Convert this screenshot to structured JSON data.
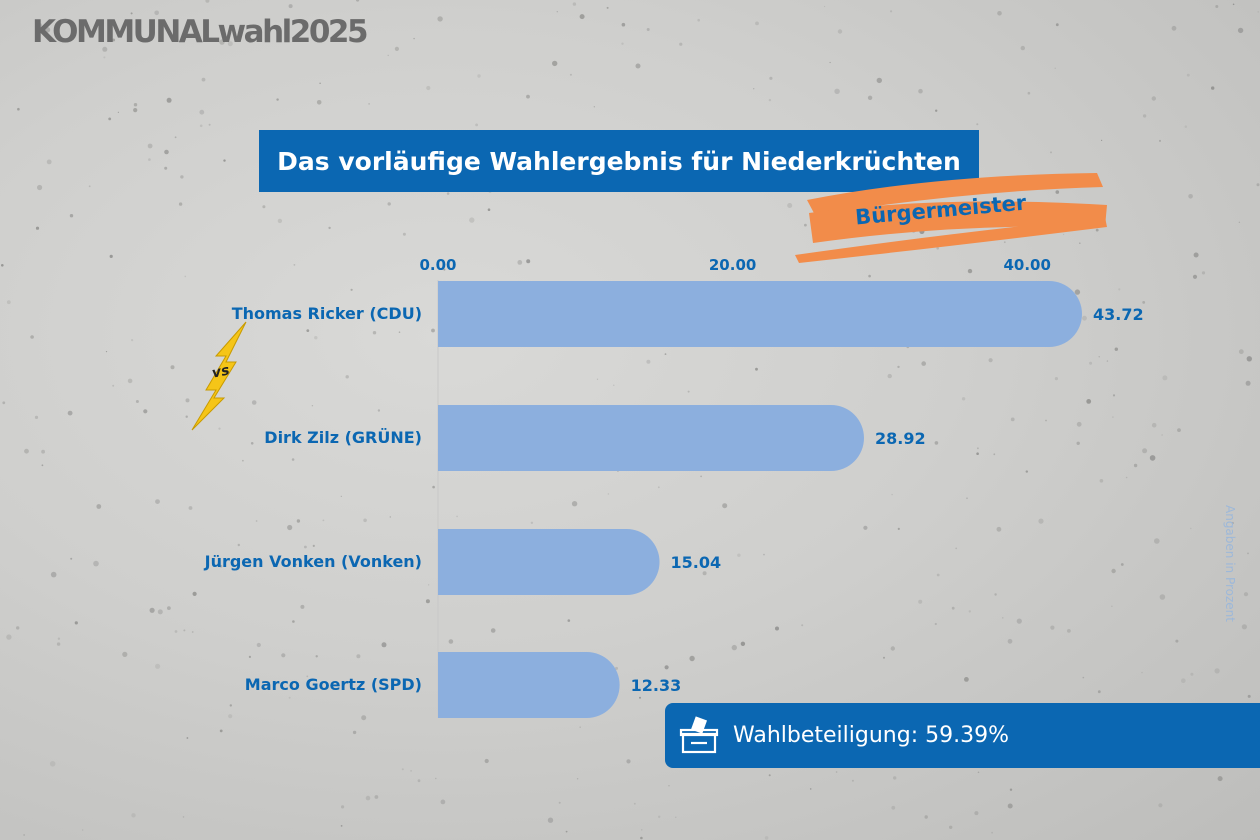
{
  "brand": "KOMMUNALwahl2025",
  "icons": {
    "turnout": "ballot-box-icon",
    "versus": "lightning-vs-icon"
  },
  "colors": {
    "accent": "#0b67b2",
    "bar": "#8cafde",
    "highlight": "#f28c4a"
  },
  "chart_data": {
    "type": "bar",
    "orientation": "horizontal",
    "title": "Das vorläufige Wahlergebnis für Niederkrüchten",
    "subtitle": "Bürgermeister",
    "categories": [
      "Thomas Ricker (CDU)",
      "Dirk Zilz (GRÜNE)",
      "Jürgen Vonken (Vonken)",
      "Marco Goertz (SPD)"
    ],
    "values": [
      43.72,
      28.92,
      15.04,
      12.33
    ],
    "value_labels": [
      "43.72",
      "28.92",
      "15.04",
      "12.33"
    ],
    "x_ticks": [
      0,
      20,
      40
    ],
    "x_tick_labels": [
      "0.00",
      "20.00",
      "40.00"
    ],
    "xlim": [
      0,
      43.72
    ],
    "axis_position": "top",
    "grid": false,
    "note": "Angaben in Prozent"
  },
  "turnout": {
    "text": "Wahlbeteiligung: 59.39%"
  }
}
